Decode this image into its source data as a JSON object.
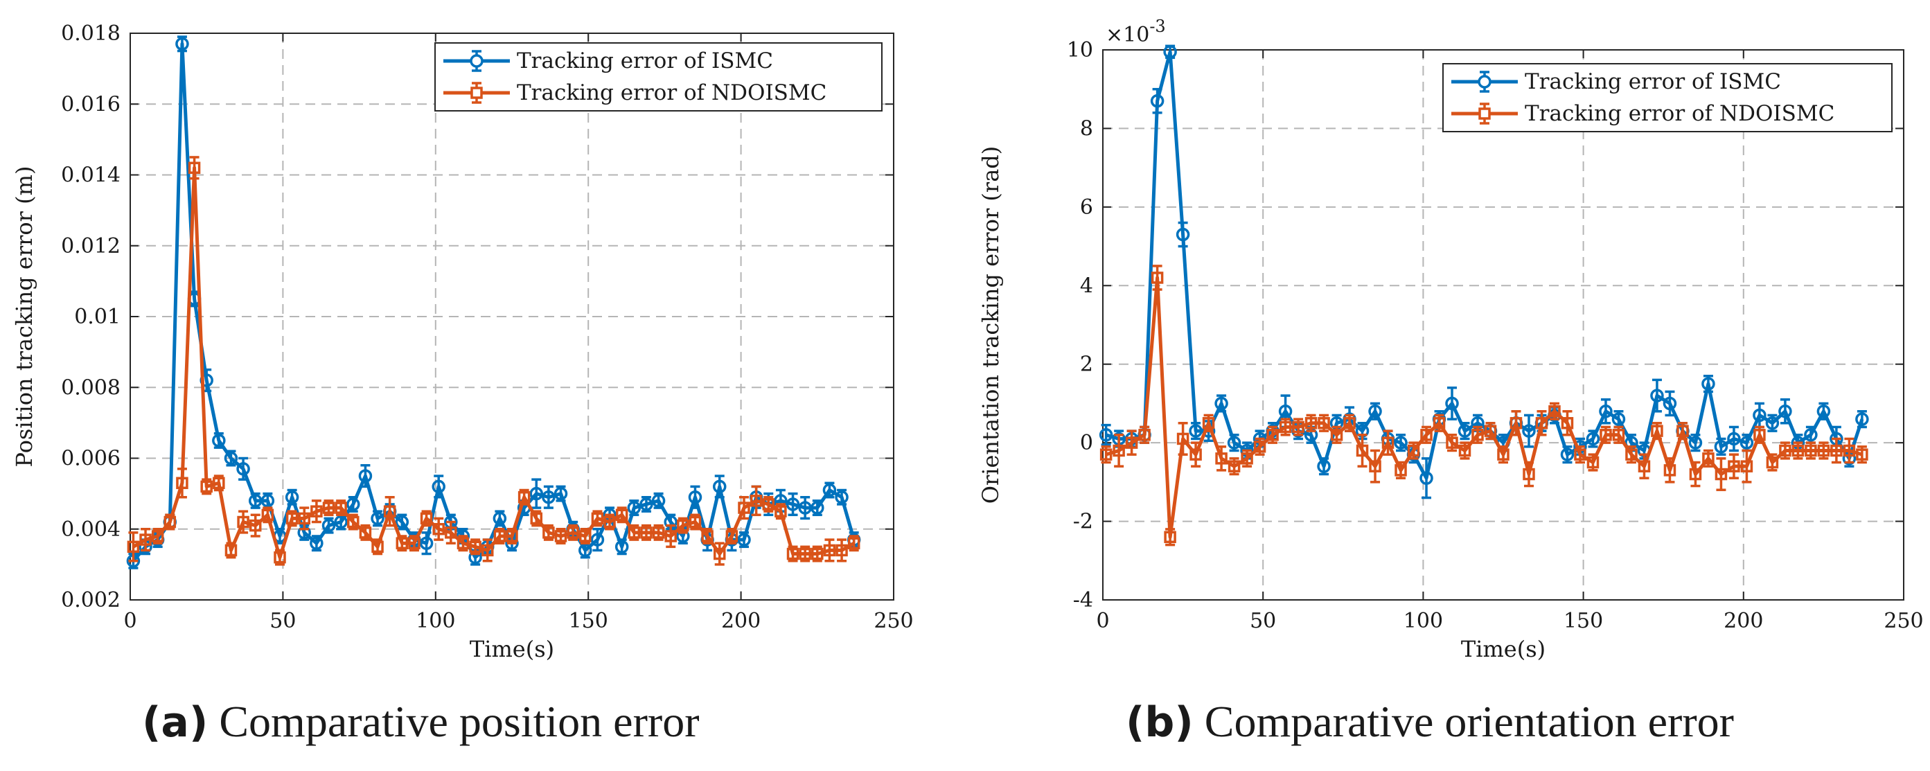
{
  "chart_data": [
    {
      "type": "line",
      "subtitle_letter": "(a)",
      "subtitle_text": "Comparative position error",
      "xlabel": "Time(s)",
      "ylabel": "Position tracking error (m)",
      "xlim": [
        0,
        250
      ],
      "ylim": [
        0.002,
        0.018
      ],
      "xticks": [
        0,
        50,
        100,
        150,
        200,
        250
      ],
      "xtick_labels": [
        "0",
        "50",
        "100",
        "150",
        "200",
        "250"
      ],
      "yticks": [
        0.002,
        0.004,
        0.006,
        0.008,
        0.01,
        0.012,
        0.014,
        0.016,
        0.018
      ],
      "ytick_labels": [
        "0.002",
        "0.004",
        "0.006",
        "0.008",
        "0.01",
        "0.012",
        "0.014",
        "0.016",
        "0.018"
      ],
      "exponent_label": "",
      "grid": true,
      "legend_position": "top-right",
      "series": [
        {
          "name": "Tracking error of ISMC",
          "color": "#0072BD",
          "marker": "circle",
          "x": [
            1,
            5,
            9,
            13,
            17,
            21,
            25,
            29,
            33,
            37,
            41,
            45,
            49,
            53,
            57,
            61,
            65,
            69,
            73,
            77,
            81,
            85,
            89,
            93,
            97,
            101,
            105,
            109,
            113,
            117,
            121,
            125,
            129,
            133,
            137,
            141,
            145,
            149,
            153,
            157,
            161,
            165,
            169,
            173,
            177,
            181,
            185,
            189,
            193,
            197,
            201,
            205,
            209,
            213,
            217,
            221,
            225,
            229,
            233,
            237
          ],
          "y": [
            0.0031,
            0.0035,
            0.0037,
            0.0042,
            0.0177,
            0.0105,
            0.0082,
            0.0065,
            0.006,
            0.0057,
            0.0048,
            0.0048,
            0.0038,
            0.0049,
            0.0039,
            0.0036,
            0.0041,
            0.0042,
            0.0047,
            0.0055,
            0.0043,
            0.0045,
            0.0042,
            0.0037,
            0.0036,
            0.0052,
            0.0042,
            0.0038,
            0.0032,
            0.0035,
            0.0043,
            0.0036,
            0.0046,
            0.005,
            0.0049,
            0.005,
            0.004,
            0.0034,
            0.0037,
            0.0044,
            0.0035,
            0.0046,
            0.0047,
            0.0048,
            0.0042,
            0.0038,
            0.0049,
            0.0037,
            0.0052,
            0.0037,
            0.0037,
            0.0049,
            0.0047,
            0.0048,
            0.0047,
            0.0046,
            0.0046,
            0.0051,
            0.0049,
            0.0037
          ],
          "err": [
            0.0002,
            0.0002,
            0.0002,
            0.0002,
            0.0002,
            0.0002,
            0.0003,
            0.0002,
            0.0002,
            0.0003,
            0.0002,
            0.0002,
            0.0002,
            0.0002,
            0.0002,
            0.0002,
            0.0002,
            0.0002,
            0.0002,
            0.0003,
            0.0002,
            0.0002,
            0.0002,
            0.0002,
            0.0003,
            0.0003,
            0.0002,
            0.0002,
            0.0002,
            0.0002,
            0.0002,
            0.0002,
            0.0002,
            0.0004,
            0.0003,
            0.0002,
            0.0002,
            0.0002,
            0.0003,
            0.0002,
            0.0002,
            0.0002,
            0.0002,
            0.0002,
            0.0002,
            0.0002,
            0.0003,
            0.0003,
            0.0003,
            0.0003,
            0.0002,
            0.0003,
            0.0003,
            0.0003,
            0.0003,
            0.0003,
            0.0002,
            0.0002,
            0.0002,
            0.0002
          ]
        },
        {
          "name": "Tracking error of NDOISMC",
          "color": "#D95319",
          "marker": "square",
          "x": [
            1,
            5,
            9,
            13,
            17,
            21,
            25,
            29,
            33,
            37,
            41,
            45,
            49,
            53,
            57,
            61,
            65,
            69,
            73,
            77,
            81,
            85,
            89,
            93,
            97,
            101,
            105,
            109,
            113,
            117,
            121,
            125,
            129,
            133,
            137,
            141,
            145,
            149,
            153,
            157,
            161,
            165,
            169,
            173,
            177,
            181,
            185,
            189,
            193,
            197,
            201,
            205,
            209,
            213,
            217,
            221,
            225,
            229,
            233,
            237
          ],
          "y": [
            0.0035,
            0.0037,
            0.0038,
            0.0042,
            0.0053,
            0.0142,
            0.0052,
            0.0053,
            0.0034,
            0.0042,
            0.0041,
            0.0044,
            0.0032,
            0.0043,
            0.0043,
            0.0045,
            0.0046,
            0.0046,
            0.0042,
            0.0039,
            0.0035,
            0.0045,
            0.0036,
            0.0036,
            0.0043,
            0.004,
            0.0039,
            0.0036,
            0.0035,
            0.0034,
            0.0038,
            0.0038,
            0.0049,
            0.0043,
            0.0039,
            0.0038,
            0.0039,
            0.0038,
            0.0043,
            0.0042,
            0.0044,
            0.0039,
            0.0039,
            0.0039,
            0.0038,
            0.0041,
            0.0042,
            0.0038,
            0.0033,
            0.0038,
            0.0046,
            0.0048,
            0.0047,
            0.0045,
            0.0033,
            0.0033,
            0.0033,
            0.0034,
            0.0034,
            0.0036
          ],
          "err": [
            0.0004,
            0.0003,
            0.0002,
            0.0002,
            0.0004,
            0.0003,
            0.0002,
            0.0002,
            0.0002,
            0.0003,
            0.0003,
            0.0002,
            0.0002,
            0.0002,
            0.0003,
            0.0003,
            0.0002,
            0.0002,
            0.0002,
            0.0002,
            0.0002,
            0.0004,
            0.0002,
            0.0002,
            0.0002,
            0.0003,
            0.0003,
            0.0002,
            0.0002,
            0.0003,
            0.0002,
            0.0002,
            0.0002,
            0.0002,
            0.0002,
            0.0002,
            0.0002,
            0.0002,
            0.0002,
            0.0002,
            0.0002,
            0.0002,
            0.0002,
            0.0002,
            0.0003,
            0.0002,
            0.0002,
            0.0002,
            0.0003,
            0.0002,
            0.0003,
            0.0004,
            0.0002,
            0.0002,
            0.0002,
            0.0002,
            0.0002,
            0.0003,
            0.0003,
            0.0002
          ]
        }
      ]
    },
    {
      "type": "line",
      "subtitle_letter": "(b)",
      "subtitle_text": "Comparative orientation error",
      "xlabel": "Time(s)",
      "ylabel": "Orientation tracking error (rad)",
      "xlim": [
        0,
        250
      ],
      "ylim": [
        -4,
        10
      ],
      "xticks": [
        0,
        50,
        100,
        150,
        200,
        250
      ],
      "xtick_labels": [
        "0",
        "50",
        "100",
        "150",
        "200",
        "250"
      ],
      "yticks": [
        -4,
        -2,
        0,
        2,
        4,
        6,
        8,
        10
      ],
      "ytick_labels": [
        "-4",
        "-2",
        "0",
        "2",
        "4",
        "6",
        "8",
        "10"
      ],
      "exponent_label": "×10",
      "exponent_power": "-3",
      "grid": true,
      "legend_position": "top-right",
      "series": [
        {
          "name": "Tracking error of ISMC",
          "color": "#0072BD",
          "marker": "circle",
          "x": [
            1,
            5,
            9,
            13,
            17,
            21,
            25,
            29,
            33,
            37,
            41,
            45,
            49,
            53,
            57,
            61,
            65,
            69,
            73,
            77,
            81,
            85,
            89,
            93,
            97,
            101,
            105,
            109,
            113,
            117,
            121,
            125,
            129,
            133,
            137,
            141,
            145,
            149,
            153,
            157,
            161,
            165,
            169,
            173,
            177,
            181,
            185,
            189,
            193,
            197,
            201,
            205,
            209,
            213,
            217,
            221,
            225,
            229,
            233,
            237
          ],
          "y": [
            0.2,
            0.1,
            0.1,
            0.2,
            8.7,
            9.95,
            5.3,
            0.3,
            0.3,
            1.0,
            0.0,
            -0.2,
            0.1,
            0.3,
            0.8,
            0.3,
            0.2,
            -0.6,
            0.5,
            0.6,
            0.3,
            0.8,
            0.1,
            0.0,
            -0.3,
            -0.9,
            0.6,
            1.0,
            0.3,
            0.5,
            0.3,
            0.0,
            0.5,
            0.3,
            0.5,
            0.7,
            -0.3,
            -0.1,
            0.1,
            0.8,
            0.6,
            0.0,
            -0.2,
            1.2,
            1.0,
            0.3,
            0.0,
            1.5,
            -0.1,
            0.1,
            0.0,
            0.7,
            0.5,
            0.8,
            0.0,
            0.2,
            0.8,
            0.1,
            -0.4,
            0.6
          ],
          "err": [
            0.25,
            0.2,
            0.2,
            0.2,
            0.3,
            0.15,
            0.3,
            0.2,
            0.25,
            0.2,
            0.2,
            0.2,
            0.2,
            0.2,
            0.4,
            0.2,
            0.2,
            0.2,
            0.2,
            0.3,
            0.2,
            0.2,
            0.2,
            0.2,
            0.2,
            0.5,
            0.2,
            0.4,
            0.2,
            0.2,
            0.2,
            0.2,
            0.3,
            0.4,
            0.2,
            0.2,
            0.2,
            0.2,
            0.2,
            0.3,
            0.2,
            0.2,
            0.2,
            0.4,
            0.3,
            0.2,
            0.2,
            0.2,
            0.2,
            0.3,
            0.2,
            0.3,
            0.2,
            0.3,
            0.2,
            0.2,
            0.2,
            0.3,
            0.2,
            0.2
          ]
        },
        {
          "name": "Tracking error of NDOISMC",
          "color": "#D95319",
          "marker": "square",
          "x": [
            1,
            5,
            9,
            13,
            17,
            21,
            25,
            29,
            33,
            37,
            41,
            45,
            49,
            53,
            57,
            61,
            65,
            69,
            73,
            77,
            81,
            85,
            89,
            93,
            97,
            101,
            105,
            109,
            113,
            117,
            121,
            125,
            129,
            133,
            137,
            141,
            145,
            149,
            153,
            157,
            161,
            165,
            169,
            173,
            177,
            181,
            185,
            189,
            193,
            197,
            201,
            205,
            209,
            213,
            217,
            221,
            225,
            229,
            233,
            237
          ],
          "y": [
            -0.3,
            -0.2,
            0.0,
            0.2,
            4.2,
            -2.4,
            0.1,
            -0.3,
            0.5,
            -0.4,
            -0.6,
            -0.4,
            -0.1,
            0.2,
            0.4,
            0.4,
            0.5,
            0.5,
            0.2,
            0.5,
            -0.2,
            -0.6,
            0.0,
            -0.7,
            -0.2,
            0.2,
            0.5,
            0.0,
            -0.2,
            0.2,
            0.3,
            -0.3,
            0.5,
            -0.8,
            0.5,
            0.8,
            0.5,
            -0.3,
            -0.5,
            0.2,
            0.2,
            -0.3,
            -0.6,
            0.3,
            -0.7,
            0.3,
            -0.8,
            -0.4,
            -0.8,
            -0.6,
            -0.6,
            0.2,
            -0.5,
            -0.2,
            -0.2,
            -0.2,
            -0.2,
            -0.2,
            -0.2,
            -0.3
          ],
          "err": [
            0.2,
            0.4,
            0.3,
            0.2,
            0.3,
            0.2,
            0.4,
            0.3,
            0.2,
            0.3,
            0.2,
            0.2,
            0.2,
            0.2,
            0.2,
            0.2,
            0.2,
            0.2,
            0.2,
            0.2,
            0.4,
            0.4,
            0.3,
            0.2,
            0.2,
            0.2,
            0.2,
            0.2,
            0.2,
            0.2,
            0.2,
            0.2,
            0.3,
            0.3,
            0.3,
            0.2,
            0.3,
            0.2,
            0.2,
            0.2,
            0.2,
            0.2,
            0.3,
            0.2,
            0.3,
            0.2,
            0.3,
            0.2,
            0.4,
            0.3,
            0.4,
            0.2,
            0.2,
            0.2,
            0.2,
            0.2,
            0.2,
            0.3,
            0.3,
            0.2
          ]
        }
      ]
    }
  ]
}
